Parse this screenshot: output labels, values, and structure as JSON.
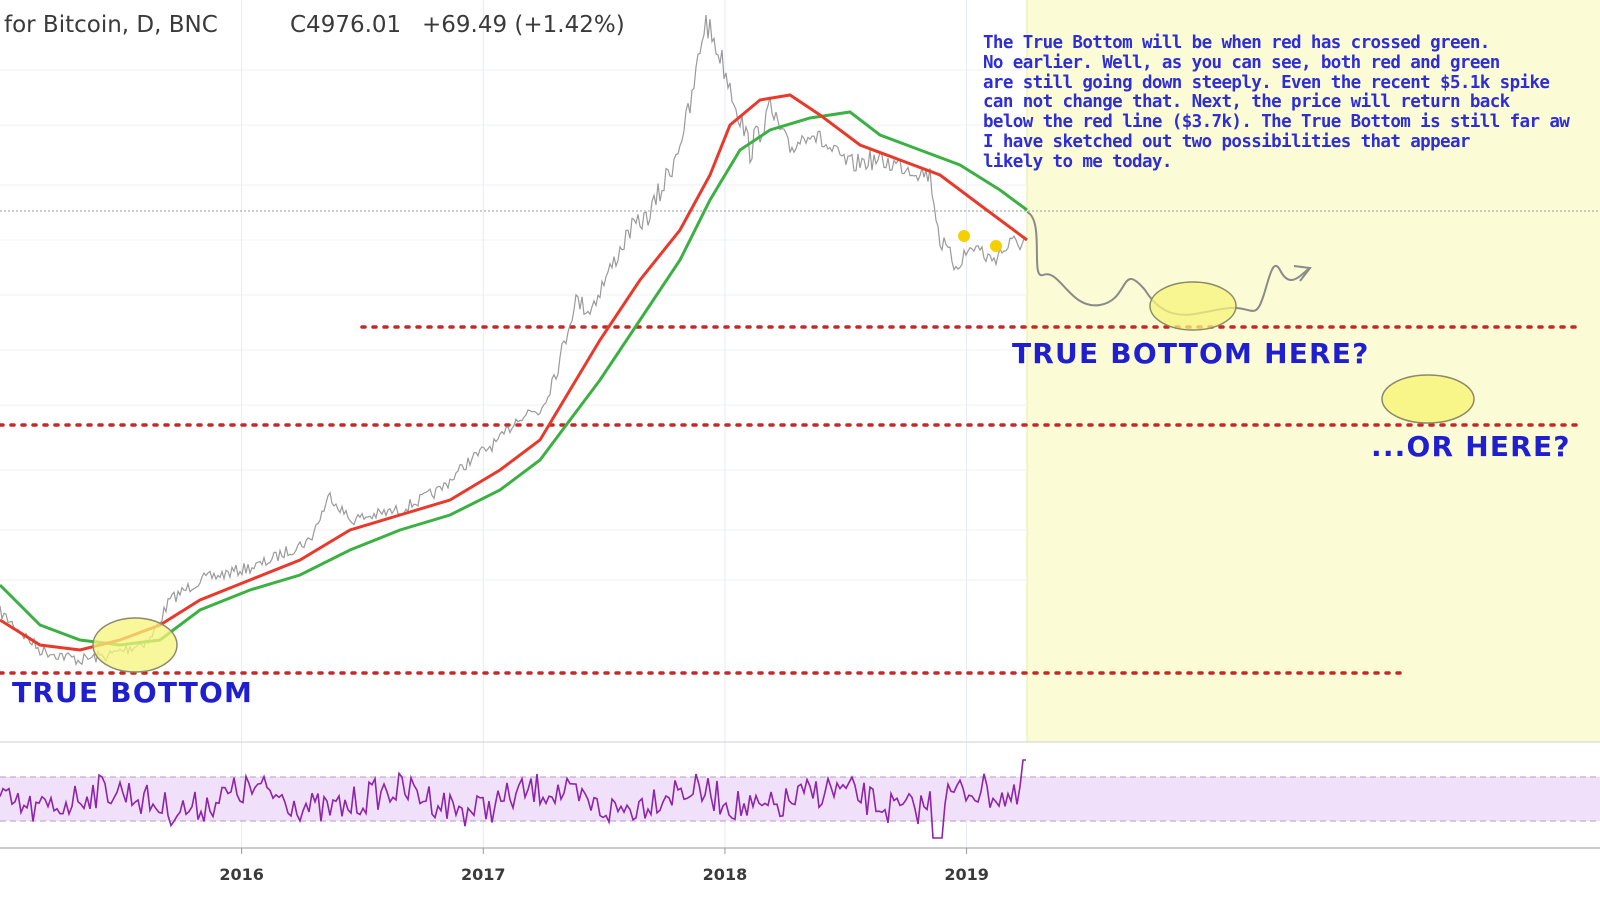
{
  "header": {
    "symbol_text": "for Bitcoin, D, BNC",
    "close_text": "C4976.01",
    "change_text": "+69.49 (+1.42%)"
  },
  "annotations": {
    "note_lines": [
      "The True Bottom will be when red has crossed green.",
      "No earlier. Well, as you can see, both red and green",
      "are still going down steeply. Even the recent $5.1k spike",
      "can not change that. Next, the price will return back",
      "below the red line ($3.7k). The True Bottom is still far aw",
      "I have sketched out two possibilities that appear",
      "likely to me today."
    ],
    "true_bottom_label": "TRUE BOTTOM",
    "here_label": "TRUE BOTTOM HERE?",
    "or_here_label": "...OR HERE?"
  },
  "colors": {
    "price": "#9a9a9a",
    "red_ma": "#e8392b",
    "green_ma": "#3cb043",
    "rsi": "#8e24aa",
    "rsi_band": "#f1e0fa",
    "projection_bg": "#fbfbd6",
    "marker_ellipse": "#f7f47a",
    "dotted_level": "#c62828",
    "label_blue": "#1f1fcf"
  },
  "chart_data": {
    "type": "line",
    "title": "for Bitcoin, D, BNC",
    "x_axis": {
      "ticks": [
        "2016",
        "2017",
        "2018",
        "2019"
      ]
    },
    "series": [],
    "approx_points": {
      "price_path_year": [
        2015.0,
        2015.5,
        2015.7,
        2016.0,
        2016.4,
        2016.6,
        2017.0,
        2017.3,
        2017.5,
        2017.7,
        2017.96,
        2018.1,
        2018.3,
        2018.5,
        2018.8,
        2018.9,
        2019.0,
        2019.25
      ]
    },
    "indicators": [
      "price (gray)",
      "red moving average",
      "green moving average",
      "RSI (purple)"
    ],
    "horizontal_levels": 3,
    "projection_area": "right of 2019 Q2"
  }
}
